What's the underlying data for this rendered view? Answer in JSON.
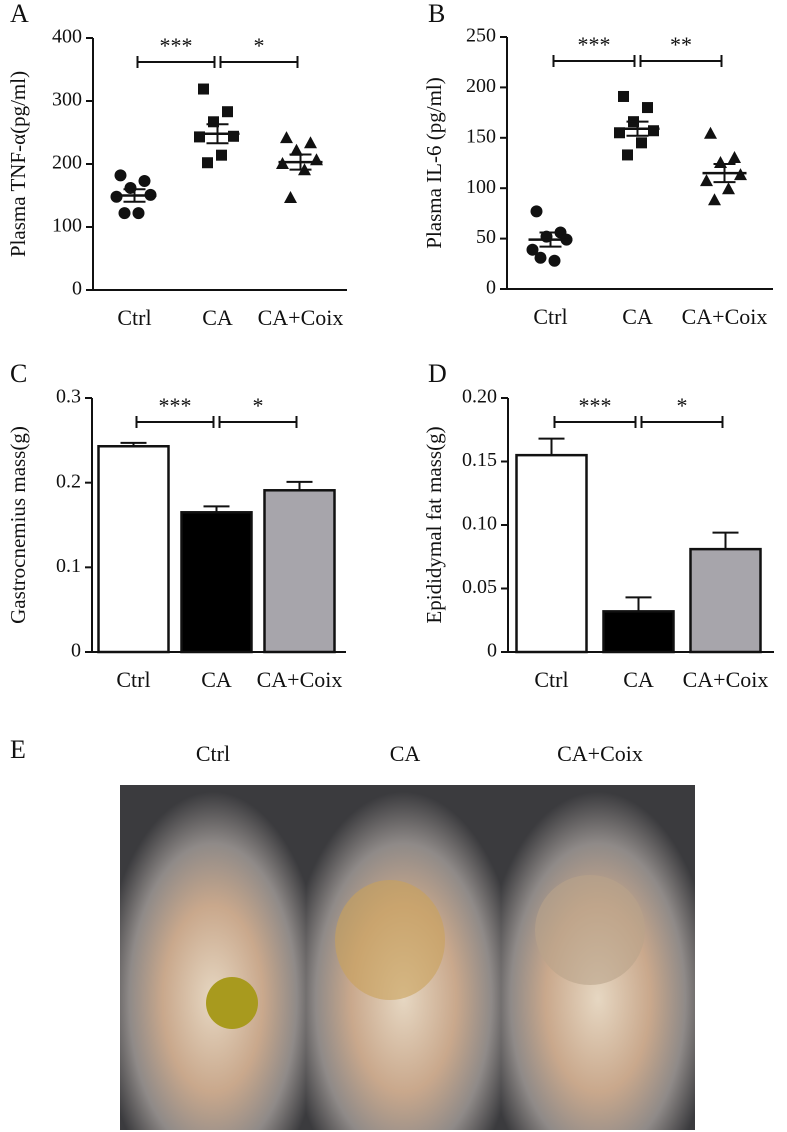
{
  "chart_data": [
    {
      "type": "dot",
      "panel": "A",
      "y_label": "Plasma TNF-α(pg/ml)",
      "categories": [
        "Ctrl",
        "CA",
        "CA+Coix"
      ],
      "points": [
        [
          182,
          173,
          162,
          151,
          148,
          122,
          122
        ],
        [
          319,
          283,
          267,
          244,
          243,
          214,
          202
        ],
        [
          241,
          233,
          221,
          206,
          200,
          190,
          146
        ]
      ],
      "means": [
        150,
        248,
        203
      ],
      "sems": [
        10,
        15,
        12
      ],
      "color": "#111111",
      "ylim": [
        0,
        400
      ],
      "yticks": [
        0,
        100,
        200,
        300,
        400
      ],
      "significance": [
        "***",
        "*"
      ]
    },
    {
      "type": "dot",
      "panel": "B",
      "y_label": "Plasma IL-6 (pg/ml)",
      "categories": [
        "Ctrl",
        "CA",
        "CA+Coix"
      ],
      "points": [
        [
          77,
          56,
          52,
          49,
          39,
          28,
          31
        ],
        [
          191,
          180,
          166,
          157,
          155,
          145,
          133
        ],
        [
          154,
          130,
          125,
          113,
          107,
          99,
          88
        ]
      ],
      "means": [
        49,
        159,
        115
      ],
      "sems": [
        7,
        7,
        9
      ],
      "color": "#111111",
      "ylim": [
        0,
        250
      ],
      "yticks": [
        0,
        50,
        100,
        150,
        200,
        250
      ],
      "significance": [
        "***",
        "**"
      ]
    },
    {
      "type": "bar",
      "panel": "C",
      "y_label": "Gastrocnemius mass(g)",
      "categories": [
        "Ctrl",
        "CA",
        "CA+Coix"
      ],
      "values": [
        0.243,
        0.165,
        0.191
      ],
      "errors": [
        0.004,
        0.007,
        0.01
      ],
      "colors": [
        "#ffffff",
        "#000000",
        "#a7a5ab"
      ],
      "ylim": [
        0,
        0.3
      ],
      "yticks": [
        0,
        0.1,
        0.2,
        0.3
      ],
      "significance": [
        "***",
        "*"
      ]
    },
    {
      "type": "bar",
      "panel": "D",
      "y_label": "Epididymal fat mass(g)",
      "categories": [
        "Ctrl",
        "CA",
        "CA+Coix"
      ],
      "values": [
        0.155,
        0.032,
        0.081
      ],
      "errors": [
        0.013,
        0.011,
        0.013
      ],
      "colors": [
        "#ffffff",
        "#000000",
        "#a7a5ab"
      ],
      "ylim": [
        0,
        0.2
      ],
      "yticks": [
        0,
        0.05,
        {
          "value": 0.1,
          "label": "0.10"
        },
        0.15,
        {
          "value": 0.2,
          "label": "0.20"
        }
      ],
      "significance": [
        "***",
        "*"
      ]
    }
  ],
  "photo_panel": {
    "panel": "E",
    "captions": [
      "Ctrl",
      "CA",
      "CA+Coix"
    ]
  }
}
